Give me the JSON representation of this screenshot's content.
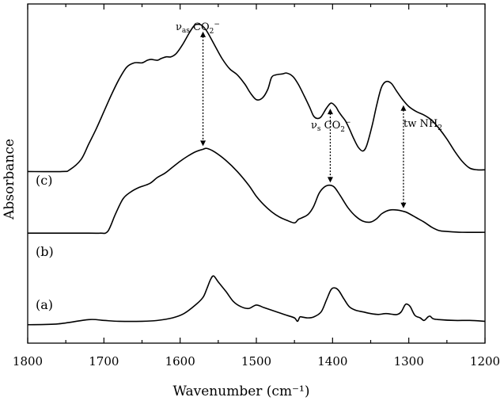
{
  "chart_data": {
    "type": "line",
    "xlabel": "Wavenumber (cm⁻¹)",
    "ylabel": "Absorbance",
    "xlim": [
      1800,
      1200
    ],
    "x_reversed": true,
    "y_ticks_shown": false,
    "x_ticks": [
      1800,
      1700,
      1600,
      1500,
      1400,
      1300,
      1200
    ],
    "series": [
      {
        "name": "(a)",
        "points": [
          [
            1800,
            0.03
          ],
          [
            1760,
            0.04
          ],
          [
            1720,
            0.09
          ],
          [
            1700,
            0.08
          ],
          [
            1680,
            0.07
          ],
          [
            1650,
            0.07
          ],
          [
            1630,
            0.08
          ],
          [
            1610,
            0.11
          ],
          [
            1595,
            0.16
          ],
          [
            1580,
            0.26
          ],
          [
            1570,
            0.35
          ],
          [
            1565,
            0.45
          ],
          [
            1560,
            0.56
          ],
          [
            1556,
            0.6
          ],
          [
            1550,
            0.53
          ],
          [
            1540,
            0.42
          ],
          [
            1530,
            0.3
          ],
          [
            1520,
            0.24
          ],
          [
            1510,
            0.22
          ],
          [
            1500,
            0.26
          ],
          [
            1490,
            0.23
          ],
          [
            1480,
            0.2
          ],
          [
            1470,
            0.17
          ],
          [
            1460,
            0.14
          ],
          [
            1450,
            0.11
          ],
          [
            1446,
            0.07
          ],
          [
            1443,
            0.12
          ],
          [
            1440,
            0.12
          ],
          [
            1433,
            0.11
          ],
          [
            1425,
            0.12
          ],
          [
            1415,
            0.18
          ],
          [
            1408,
            0.32
          ],
          [
            1402,
            0.44
          ],
          [
            1397,
            0.46
          ],
          [
            1392,
            0.43
          ],
          [
            1385,
            0.33
          ],
          [
            1378,
            0.24
          ],
          [
            1370,
            0.2
          ],
          [
            1360,
            0.18
          ],
          [
            1350,
            0.16
          ],
          [
            1340,
            0.15
          ],
          [
            1330,
            0.16
          ],
          [
            1320,
            0.15
          ],
          [
            1315,
            0.15
          ],
          [
            1310,
            0.18
          ],
          [
            1305,
            0.26
          ],
          [
            1302,
            0.27
          ],
          [
            1298,
            0.24
          ],
          [
            1292,
            0.14
          ],
          [
            1285,
            0.11
          ],
          [
            1280,
            0.08
          ],
          [
            1275,
            0.12
          ],
          [
            1272,
            0.13
          ],
          [
            1268,
            0.1
          ],
          [
            1260,
            0.09
          ],
          [
            1240,
            0.08
          ],
          [
            1220,
            0.08
          ],
          [
            1200,
            0.07
          ]
        ]
      },
      {
        "name": "(b)",
        "points": [
          [
            1800,
            1.1
          ],
          [
            1720,
            1.1
          ],
          [
            1705,
            1.1
          ],
          [
            1695,
            1.12
          ],
          [
            1685,
            1.32
          ],
          [
            1675,
            1.5
          ],
          [
            1665,
            1.58
          ],
          [
            1655,
            1.63
          ],
          [
            1640,
            1.68
          ],
          [
            1630,
            1.75
          ],
          [
            1620,
            1.8
          ],
          [
            1610,
            1.87
          ],
          [
            1600,
            1.94
          ],
          [
            1590,
            2.0
          ],
          [
            1580,
            2.05
          ],
          [
            1570,
            2.08
          ],
          [
            1565,
            2.09
          ],
          [
            1555,
            2.05
          ],
          [
            1540,
            1.95
          ],
          [
            1525,
            1.82
          ],
          [
            1510,
            1.66
          ],
          [
            1500,
            1.53
          ],
          [
            1490,
            1.43
          ],
          [
            1480,
            1.35
          ],
          [
            1470,
            1.29
          ],
          [
            1460,
            1.25
          ],
          [
            1450,
            1.22
          ],
          [
            1445,
            1.26
          ],
          [
            1440,
            1.28
          ],
          [
            1432,
            1.32
          ],
          [
            1425,
            1.41
          ],
          [
            1418,
            1.56
          ],
          [
            1412,
            1.63
          ],
          [
            1405,
            1.66
          ],
          [
            1398,
            1.64
          ],
          [
            1390,
            1.54
          ],
          [
            1380,
            1.4
          ],
          [
            1370,
            1.3
          ],
          [
            1360,
            1.24
          ],
          [
            1350,
            1.23
          ],
          [
            1342,
            1.27
          ],
          [
            1335,
            1.33
          ],
          [
            1325,
            1.37
          ],
          [
            1315,
            1.37
          ],
          [
            1305,
            1.35
          ],
          [
            1300,
            1.33
          ],
          [
            1290,
            1.28
          ],
          [
            1280,
            1.23
          ],
          [
            1270,
            1.17
          ],
          [
            1260,
            1.13
          ],
          [
            1250,
            1.12
          ],
          [
            1230,
            1.11
          ],
          [
            1200,
            1.11
          ]
        ]
      },
      {
        "name": "(c)",
        "points": [
          [
            1800,
            1.82
          ],
          [
            1755,
            1.82
          ],
          [
            1745,
            1.84
          ],
          [
            1730,
            1.96
          ],
          [
            1720,
            2.14
          ],
          [
            1710,
            2.32
          ],
          [
            1700,
            2.52
          ],
          [
            1690,
            2.72
          ],
          [
            1680,
            2.9
          ],
          [
            1670,
            3.04
          ],
          [
            1660,
            3.09
          ],
          [
            1650,
            3.09
          ],
          [
            1643,
            3.12
          ],
          [
            1638,
            3.13
          ],
          [
            1630,
            3.12
          ],
          [
            1625,
            3.14
          ],
          [
            1618,
            3.16
          ],
          [
            1612,
            3.16
          ],
          [
            1605,
            3.2
          ],
          [
            1597,
            3.3
          ],
          [
            1588,
            3.44
          ],
          [
            1582,
            3.52
          ],
          [
            1578,
            3.54
          ],
          [
            1572,
            3.53
          ],
          [
            1565,
            3.46
          ],
          [
            1555,
            3.3
          ],
          [
            1545,
            3.14
          ],
          [
            1535,
            3.02
          ],
          [
            1525,
            2.95
          ],
          [
            1515,
            2.84
          ],
          [
            1508,
            2.74
          ],
          [
            1500,
            2.66
          ],
          [
            1492,
            2.68
          ],
          [
            1485,
            2.78
          ],
          [
            1480,
            2.92
          ],
          [
            1474,
            2.95
          ],
          [
            1466,
            2.96
          ],
          [
            1460,
            2.97
          ],
          [
            1452,
            2.93
          ],
          [
            1445,
            2.84
          ],
          [
            1437,
            2.7
          ],
          [
            1430,
            2.57
          ],
          [
            1425,
            2.47
          ],
          [
            1420,
            2.44
          ],
          [
            1415,
            2.46
          ],
          [
            1408,
            2.56
          ],
          [
            1402,
            2.62
          ],
          [
            1396,
            2.58
          ],
          [
            1392,
            2.52
          ],
          [
            1388,
            2.47
          ],
          [
            1383,
            2.41
          ],
          [
            1378,
            2.32
          ],
          [
            1372,
            2.2
          ],
          [
            1366,
            2.1
          ],
          [
            1360,
            2.06
          ],
          [
            1355,
            2.13
          ],
          [
            1348,
            2.36
          ],
          [
            1342,
            2.6
          ],
          [
            1336,
            2.8
          ],
          [
            1330,
            2.87
          ],
          [
            1323,
            2.85
          ],
          [
            1316,
            2.76
          ],
          [
            1308,
            2.66
          ],
          [
            1300,
            2.58
          ],
          [
            1290,
            2.52
          ],
          [
            1280,
            2.48
          ],
          [
            1270,
            2.42
          ],
          [
            1260,
            2.32
          ],
          [
            1250,
            2.2
          ],
          [
            1240,
            2.06
          ],
          [
            1230,
            1.94
          ],
          [
            1220,
            1.86
          ],
          [
            1210,
            1.84
          ],
          [
            1200,
            1.84
          ]
        ]
      }
    ],
    "series_labels": [
      "(a)",
      "(b)",
      "(c)"
    ],
    "annotations": [
      {
        "label_main": "ν",
        "label_sub": "as",
        "label_rest": " CO",
        "label_sub2": "2",
        "label_sup": "−",
        "x": 1570
      },
      {
        "label_main": "ν",
        "label_sub": "s",
        "label_rest": " CO",
        "label_sub2": "2",
        "label_sup": "−",
        "x": 1403
      },
      {
        "label_main": "tw NH",
        "label_sub": "",
        "label_rest": "",
        "label_sub2": "2",
        "label_sup": "",
        "x": 1307
      }
    ]
  }
}
